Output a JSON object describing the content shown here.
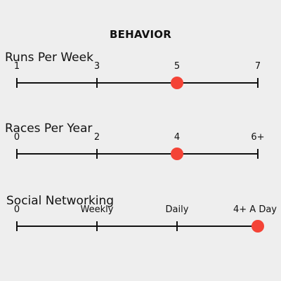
{
  "header": {
    "title": "BEHAVIOR"
  },
  "accent_color": "#f44336",
  "scales": [
    {
      "id": "runs-per-week",
      "title": "Runs Per Week",
      "labels": [
        "1",
        "3",
        "5",
        "7"
      ],
      "selected_index": 2
    },
    {
      "id": "races-per-year",
      "title": "Races Per Year",
      "labels": [
        "0",
        "2",
        "4",
        "6+"
      ],
      "selected_index": 2
    },
    {
      "id": "social-networking",
      "title": "Social Networking",
      "labels": [
        "0",
        "Weekly",
        "Daily",
        "4+ A Day"
      ],
      "selected_index": 3
    }
  ]
}
